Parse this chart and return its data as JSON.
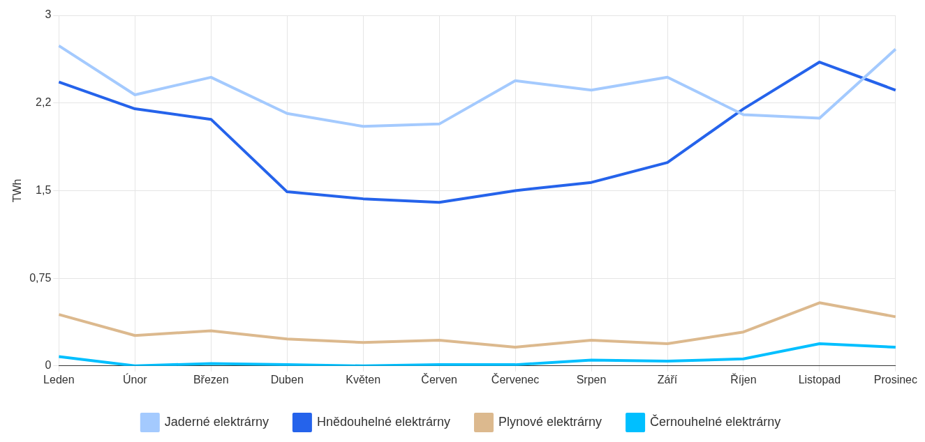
{
  "chart_data": {
    "type": "line",
    "ylabel": "TWh",
    "categories": [
      "Leden",
      "Únor",
      "Březen",
      "Duben",
      "Květen",
      "Červen",
      "Červenec",
      "Srpen",
      "Září",
      "Říjen",
      "Listopad",
      "Prosinec"
    ],
    "series": [
      {
        "name": "Jaderné elektrárny",
        "color": "#a4cafe",
        "values": [
          2.74,
          2.32,
          2.47,
          2.16,
          2.05,
          2.07,
          2.44,
          2.36,
          2.47,
          2.15,
          2.12,
          2.71
        ]
      },
      {
        "name": "Hnědouhelné elektrárny",
        "color": "#2563eb",
        "values": [
          2.43,
          2.2,
          2.11,
          1.49,
          1.43,
          1.4,
          1.5,
          1.57,
          1.74,
          2.2,
          2.6,
          2.36
        ]
      },
      {
        "name": "Plynové elektrárny",
        "color": "#dcb98e",
        "values": [
          0.44,
          0.26,
          0.3,
          0.23,
          0.2,
          0.22,
          0.16,
          0.22,
          0.19,
          0.29,
          0.54,
          0.42
        ]
      },
      {
        "name": "Černouhelné elektrárny",
        "color": "#00bfff",
        "values": [
          0.08,
          0.0,
          0.02,
          0.01,
          0.0,
          0.01,
          0.01,
          0.05,
          0.04,
          0.06,
          0.19,
          0.16
        ]
      }
    ],
    "ylim": [
      0,
      3
    ],
    "yticks": [
      0,
      {
        "value": 0.75,
        "label": "0,75"
      },
      {
        "value": 1.5,
        "label": "1,5"
      },
      {
        "value": 2.25,
        "label": "2,2"
      },
      3
    ],
    "grid": true,
    "legend": "bottom",
    "marker": "none",
    "line_style": "solid"
  }
}
